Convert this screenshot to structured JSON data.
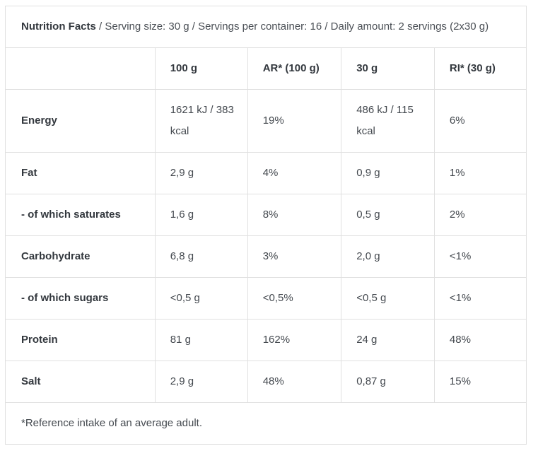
{
  "colors": {
    "background": "#ffffff",
    "border": "#e0e0e0",
    "text_bold": "#33383e",
    "text_regular": "#44494f"
  },
  "header": {
    "title": "Nutrition Facts",
    "details": " / Serving size: 30 g / Servings per container: 16 / Daily amount: 2 servings (2x30 g)"
  },
  "table": {
    "columns": [
      "",
      "100 g",
      "AR* (100 g)",
      "30 g",
      "RI* (30 g)"
    ],
    "rows": [
      {
        "label": "Energy",
        "values": [
          "1621 kJ / 383 kcal",
          "19%",
          "486 kJ / 115 kcal",
          "6%"
        ]
      },
      {
        "label": "Fat",
        "values": [
          "2,9 g",
          "4%",
          "0,9 g",
          "1%"
        ]
      },
      {
        "label": "- of which saturates",
        "values": [
          "1,6 g",
          "8%",
          "0,5 g",
          "2%"
        ]
      },
      {
        "label": "Carbohydrate",
        "values": [
          "6,8 g",
          "3%",
          "2,0 g",
          "<1%"
        ]
      },
      {
        "label": "- of which sugars",
        "values": [
          "<0,5 g",
          "<0,5%",
          "<0,5 g",
          "<1%"
        ]
      },
      {
        "label": "Protein",
        "values": [
          "81 g",
          "162%",
          "24 g",
          "48%"
        ]
      },
      {
        "label": "Salt",
        "values": [
          "2,9 g",
          "48%",
          "0,87 g",
          "15%"
        ]
      }
    ],
    "footnote": "*Reference intake of an average adult."
  }
}
